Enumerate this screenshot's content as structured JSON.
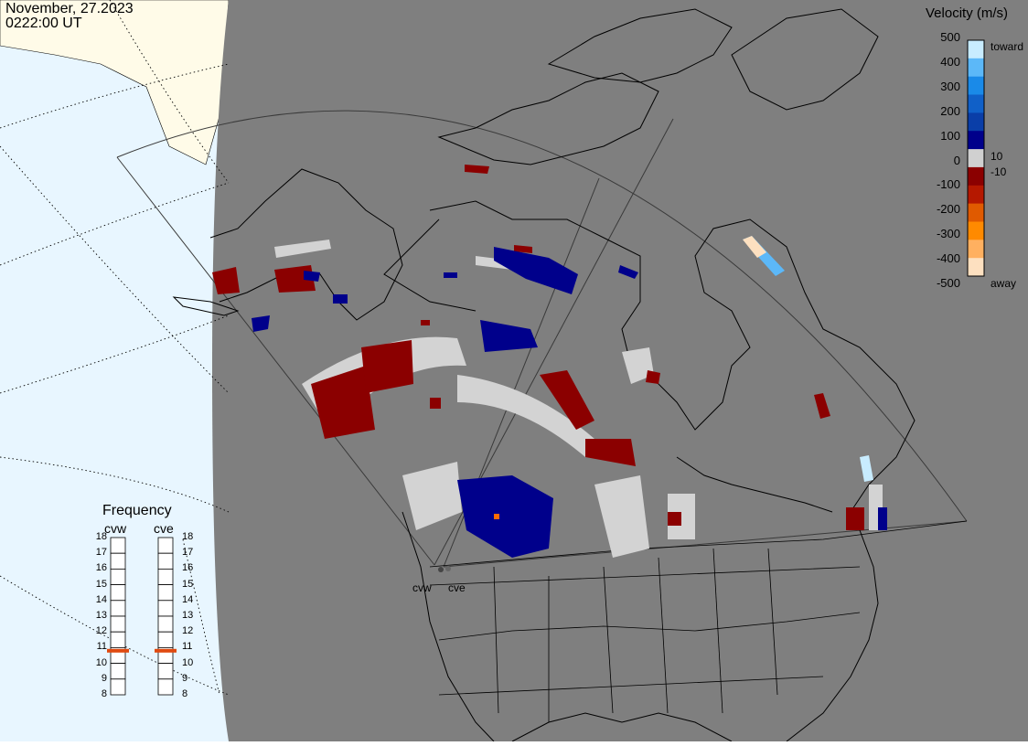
{
  "header": {
    "date": "November, 27.2023",
    "time": "0222:00 UT"
  },
  "colorbar": {
    "title": "Velocity (m/s)",
    "ticks": [
      "500",
      "400",
      "300",
      "200",
      "100",
      "0",
      "-100",
      "-200",
      "-300",
      "-400",
      "-500"
    ],
    "small_pos": "10",
    "small_neg": "-10",
    "toward_label": "toward",
    "away_label": "away",
    "colors": [
      "#fde0c0",
      "#ffb060",
      "#ff8a00",
      "#e05a00",
      "#b51800",
      "#8b0000",
      "#d0d0d0",
      "#00008b",
      "#0a3ea8",
      "#1060c8",
      "#1a8ae8",
      "#5cb8f8",
      "#c8ecff"
    ]
  },
  "frequency": {
    "title": "Frequency",
    "radars": [
      {
        "name": "cvw",
        "value": 10.8
      },
      {
        "name": "cve",
        "value": 10.8
      }
    ],
    "scale": [
      "18",
      "17",
      "16",
      "15",
      "14",
      "13",
      "12",
      "11",
      "10",
      "9",
      "8"
    ]
  },
  "sites": [
    "cvw",
    "cve"
  ],
  "palette": {
    "ocean": "#e8f6ff",
    "land": "#fffbe8",
    "night": "#7f7f7f",
    "away_dark": "#8b0000",
    "toward_dark": "#00008b",
    "ground_scatter": "#d3d3d3"
  }
}
